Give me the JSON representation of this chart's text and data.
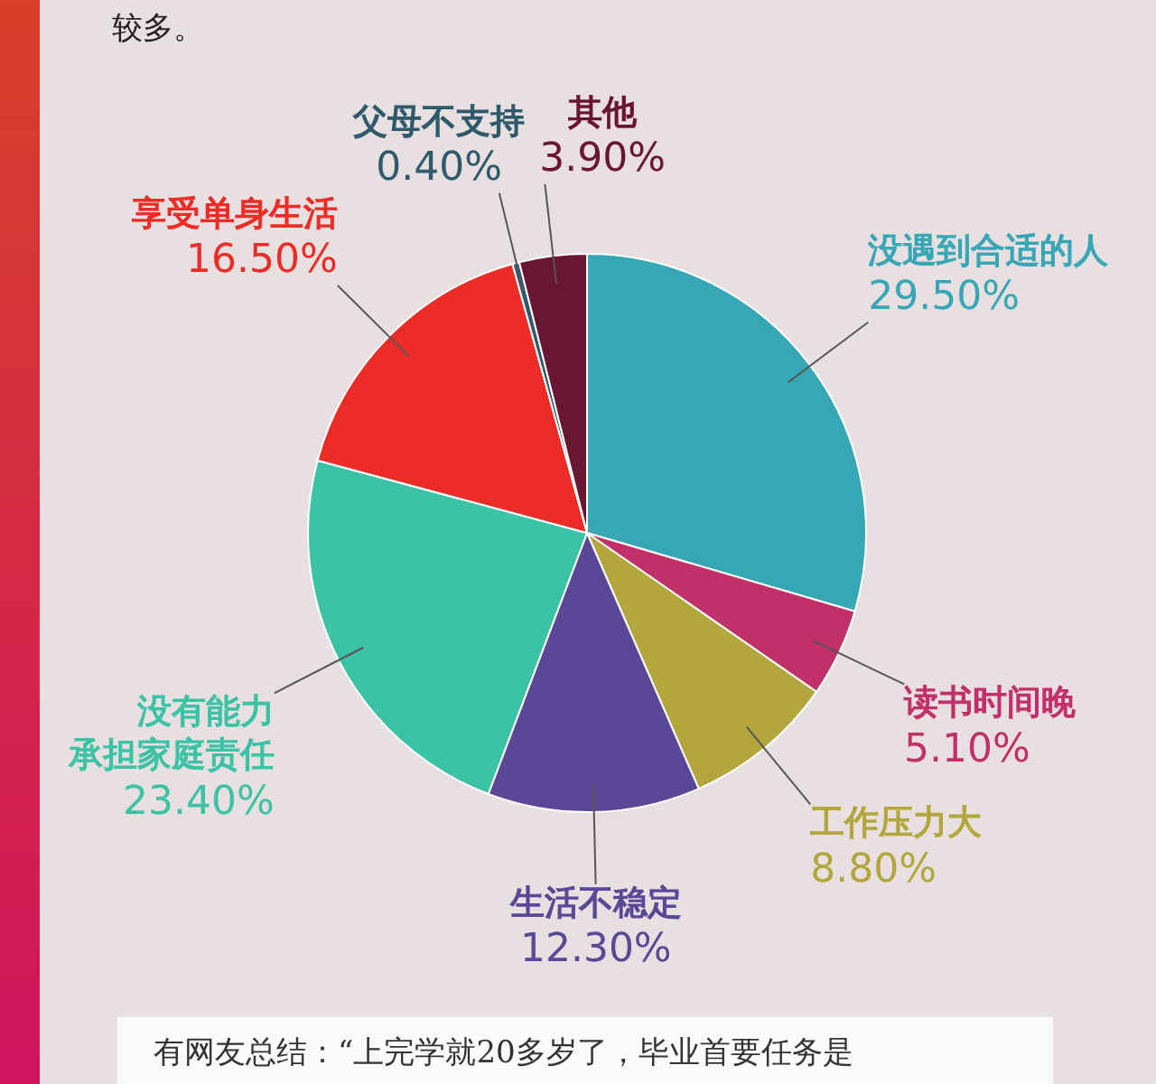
{
  "chart_data": {
    "type": "pie",
    "categories": [
      "没遇到合适的人",
      "读书时间晚",
      "工作压力大",
      "生活不稳定",
      "没有能力承担家庭责任",
      "享受单身生活",
      "父母不支持",
      "其他"
    ],
    "values": [
      29.5,
      5.1,
      8.8,
      12.3,
      23.4,
      16.5,
      0.4,
      3.9
    ],
    "value_labels": [
      "29.50%",
      "5.10%",
      "8.80%",
      "12.30%",
      "23.40%",
      "16.50%",
      "0.40%",
      "3.90%"
    ],
    "colors": [
      "#37a6b5",
      "#c2306a",
      "#b3a63c",
      "#5a4897",
      "#3cc3a6",
      "#ec2c26",
      "#2f5a6c",
      "#6b1535"
    ],
    "annotations": [
      "较多。",
      "有网友总结：“上完学就20多岁了，毕业首要任务是"
    ],
    "legend": false
  }
}
